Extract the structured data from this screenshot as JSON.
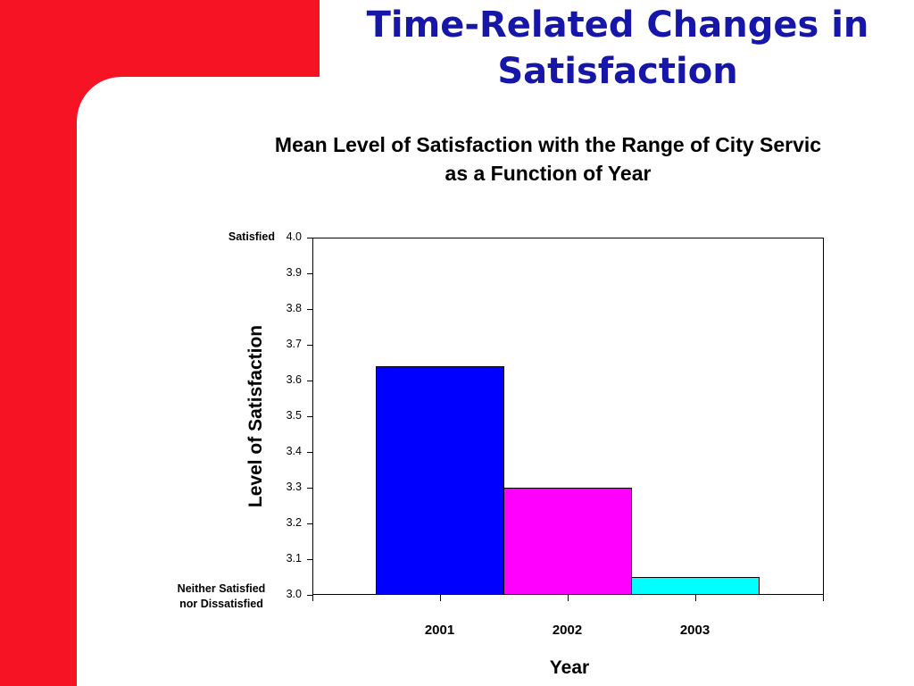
{
  "slide": {
    "title_line1": "Time-Related Changes in",
    "title_line2": "Satisfaction"
  },
  "colors": {
    "accent_red": "#f51324",
    "title_blue": "#1616a8"
  },
  "chart_data": {
    "type": "bar",
    "title_line1": "Mean Level of Satisfaction with the Range of City Servic",
    "title_line2": "as a Function of Year",
    "categories": [
      "2001",
      "2002",
      "2003"
    ],
    "values": [
      3.64,
      3.3,
      3.05
    ],
    "colors": [
      "#0000ff",
      "#ff00ff",
      "#00ffff"
    ],
    "xlabel": "Year",
    "ylabel": "Level of Satisfaction",
    "ylim": [
      3.0,
      4.0
    ],
    "yticks": [
      "3.0",
      "3.1",
      "3.2",
      "3.3",
      "3.4",
      "3.5",
      "3.6",
      "3.7",
      "3.8",
      "3.9",
      "4.0"
    ],
    "annotations": {
      "top": "Satisfied",
      "bottom_line1": "Neither Satisfied",
      "bottom_line2": "nor Dissatisfied"
    },
    "grid": false
  }
}
